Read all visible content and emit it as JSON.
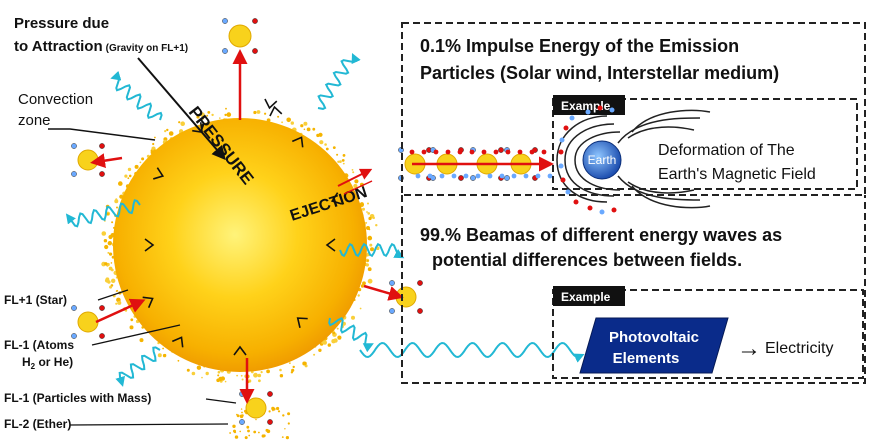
{
  "labels": {
    "pressure_due_line1": "Pressure due",
    "pressure_due_line2": "to Attraction",
    "pressure_due_note": "(Gravity on FL+1)",
    "convection_line1": "Convection",
    "convection_line2": "zone",
    "sun_pressure": "PRESSURE",
    "sun_ejection": "EJECTION",
    "fl_plus1": "FL+1 (Star)",
    "fl_minus1_atoms_line1": "FL-1 (Atoms",
    "fl_minus1_atoms_line2_pre": "H",
    "fl_minus1_atoms_sub": "2",
    "fl_minus1_atoms_line2_post": " or He)",
    "fl_minus1_particles": "FL-1 (Particles with Mass)",
    "fl_minus2": "FL-2 (Ether)"
  },
  "top_panel": {
    "line1": "0.1% Impulse Energy of the Emission",
    "line2a": "Particles (Solar wind",
    "line2b": ", Interstellar medium)",
    "example_badge": "Example",
    "earth_label": "Earth",
    "caption_line1": "Deformation of The",
    "caption_line2": "Earth's Magnetic Field"
  },
  "bottom_panel": {
    "line1": "99.% Beamas of different energy waves as",
    "line2": "potential differences between fields.",
    "example_badge": "Example",
    "pv_line1": "Photovoltaic",
    "pv_line2": "Elements",
    "arrow_symbol": "→",
    "result": "Electricity"
  },
  "colors": {
    "sun_core": "#ffd21a",
    "sun_edge": "#f5a100",
    "particle": "#f8d21c",
    "arrow_red": "#e01010",
    "wave_cyan": "#22b8d4",
    "pv_blue": "#0a2b8a",
    "earth_blue": "#1e5fc0"
  }
}
